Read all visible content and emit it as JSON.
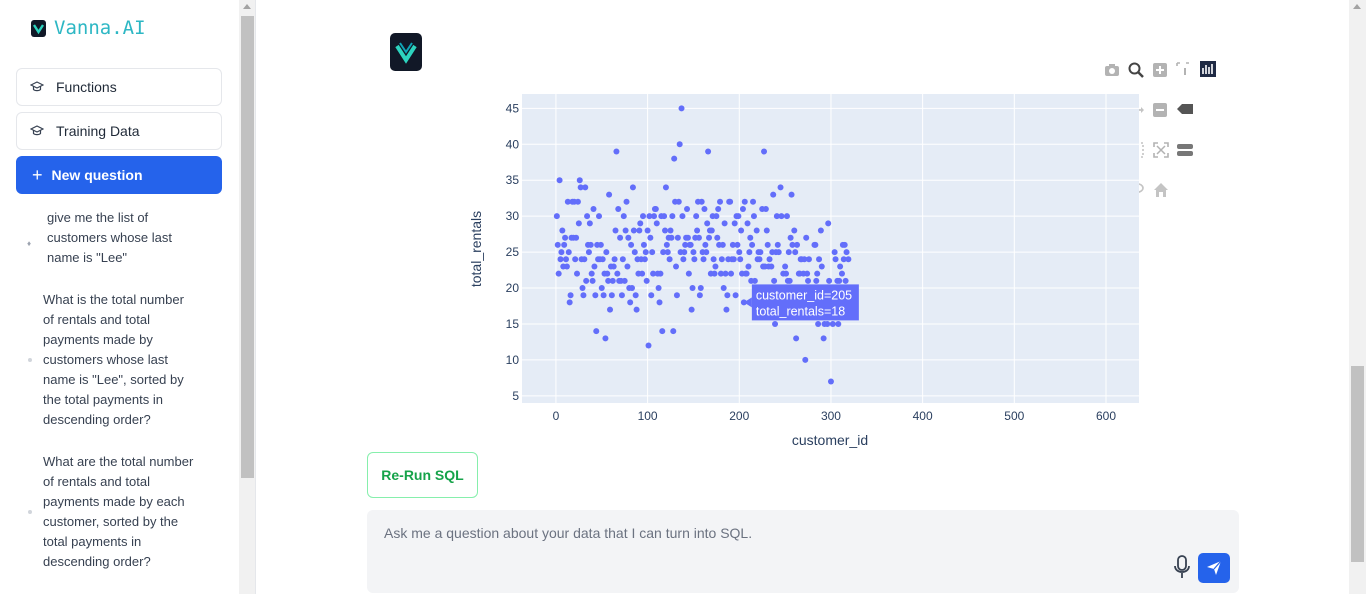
{
  "app": {
    "name": "Vanna.AI"
  },
  "sidebar": {
    "functions_label": "Functions",
    "training_label": "Training Data",
    "new_question_label": "New question",
    "history": [
      {
        "lines": [
          "give me the list of",
          "customers whose last",
          "name is \"Lee\""
        ]
      },
      {
        "lines": [
          "What is the total number",
          "of rentals and total",
          "payments made by",
          "customers whose last",
          "name is \"Lee\", sorted by",
          "the total payments in",
          "descending order?"
        ]
      },
      {
        "lines": [
          "What are the total number",
          "of rentals and total",
          "payments made by each",
          "customer, sorted by the",
          "total payments in",
          "descending order?"
        ]
      }
    ]
  },
  "main": {
    "rerun_label": "Re-Run SQL",
    "input": {
      "placeholder": "Ask me a question about your data that I can turn into SQL.",
      "value": ""
    }
  },
  "chart_data": {
    "type": "scatter",
    "xlabel": "customer_id",
    "ylabel": "total_rentals",
    "xlim": [
      -37,
      636
    ],
    "ylim": [
      4,
      47
    ],
    "xticks": [
      0,
      100,
      200,
      300,
      400,
      500,
      600
    ],
    "yticks": [
      5,
      10,
      15,
      20,
      25,
      30,
      35,
      40,
      45
    ],
    "grid": true,
    "marker_color": "#636efa",
    "plot_bg": "#e5ecf6",
    "hover": {
      "x": 205,
      "y": 18,
      "line1": "customer_id=205",
      "line2": "total_rentals=18"
    },
    "points": [
      [
        1,
        30
      ],
      [
        2,
        26
      ],
      [
        3,
        22
      ],
      [
        4,
        35
      ],
      [
        5,
        24
      ],
      [
        6,
        25
      ],
      [
        7,
        28
      ],
      [
        8,
        23
      ],
      [
        9,
        26
      ],
      [
        10,
        27
      ],
      [
        11,
        24
      ],
      [
        12,
        23
      ],
      [
        13,
        32
      ],
      [
        14,
        25
      ],
      [
        15,
        18
      ],
      [
        16,
        19
      ],
      [
        17,
        27
      ],
      [
        18,
        32
      ],
      [
        19,
        27
      ],
      [
        20,
        32
      ],
      [
        21,
        24
      ],
      [
        22,
        27
      ],
      [
        23,
        22
      ],
      [
        24,
        32
      ],
      [
        25,
        29
      ],
      [
        26,
        35
      ],
      [
        27,
        34
      ],
      [
        28,
        24
      ],
      [
        29,
        20
      ],
      [
        30,
        19
      ],
      [
        31,
        24
      ],
      [
        32,
        34
      ],
      [
        33,
        21
      ],
      [
        34,
        30
      ],
      [
        35,
        26
      ],
      [
        36,
        25
      ],
      [
        37,
        29
      ],
      [
        38,
        26
      ],
      [
        39,
        22
      ],
      [
        40,
        21
      ],
      [
        41,
        31
      ],
      [
        42,
        23
      ],
      [
        43,
        19
      ],
      [
        44,
        14
      ],
      [
        45,
        26
      ],
      [
        46,
        24
      ],
      [
        47,
        30
      ],
      [
        48,
        24
      ],
      [
        49,
        26
      ],
      [
        50,
        20
      ],
      [
        51,
        24
      ],
      [
        52,
        19
      ],
      [
        53,
        22
      ],
      [
        54,
        13
      ],
      [
        55,
        25
      ],
      [
        56,
        22
      ],
      [
        57,
        21
      ],
      [
        58,
        33
      ],
      [
        59,
        17
      ],
      [
        60,
        23
      ],
      [
        61,
        19
      ],
      [
        62,
        21
      ],
      [
        63,
        23
      ],
      [
        64,
        24
      ],
      [
        65,
        28
      ],
      [
        66,
        39
      ],
      [
        67,
        22
      ],
      [
        68,
        31
      ],
      [
        69,
        21
      ],
      [
        70,
        27
      ],
      [
        71,
        21
      ],
      [
        72,
        19
      ],
      [
        73,
        24
      ],
      [
        74,
        30
      ],
      [
        75,
        21
      ],
      [
        76,
        28
      ],
      [
        77,
        32
      ],
      [
        78,
        23
      ],
      [
        79,
        27
      ],
      [
        80,
        20
      ],
      [
        81,
        18
      ],
      [
        82,
        26
      ],
      [
        83,
        20
      ],
      [
        84,
        34
      ],
      [
        85,
        28
      ],
      [
        86,
        25
      ],
      [
        87,
        19
      ],
      [
        88,
        17
      ],
      [
        89,
        24
      ],
      [
        90,
        22
      ],
      [
        91,
        28
      ],
      [
        92,
        29
      ],
      [
        93,
        24
      ],
      [
        94,
        22
      ],
      [
        95,
        30
      ],
      [
        96,
        26
      ],
      [
        97,
        24
      ],
      [
        98,
        25
      ],
      [
        99,
        21
      ],
      [
        100,
        28
      ],
      [
        101,
        12
      ],
      [
        102,
        30
      ],
      [
        103,
        27
      ],
      [
        104,
        19
      ],
      [
        105,
        25
      ],
      [
        106,
        22
      ],
      [
        107,
        30
      ],
      [
        108,
        31
      ],
      [
        109,
        31
      ],
      [
        110,
        29
      ],
      [
        111,
        22
      ],
      [
        112,
        20
      ],
      [
        113,
        18
      ],
      [
        114,
        22
      ],
      [
        115,
        30
      ],
      [
        116,
        14
      ],
      [
        117,
        25
      ],
      [
        118,
        30
      ],
      [
        119,
        28
      ],
      [
        120,
        34
      ],
      [
        121,
        26
      ],
      [
        122,
        25
      ],
      [
        123,
        27
      ],
      [
        124,
        24
      ],
      [
        125,
        28
      ],
      [
        126,
        27
      ],
      [
        127,
        30
      ],
      [
        128,
        14
      ],
      [
        129,
        38
      ],
      [
        130,
        32
      ],
      [
        131,
        23
      ],
      [
        132,
        19
      ],
      [
        133,
        27
      ],
      [
        134,
        32
      ],
      [
        135,
        40
      ],
      [
        136,
        25
      ],
      [
        137,
        45
      ],
      [
        138,
        30
      ],
      [
        139,
        24
      ],
      [
        140,
        25
      ],
      [
        141,
        26
      ],
      [
        142,
        27
      ],
      [
        143,
        31
      ],
      [
        144,
        27
      ],
      [
        145,
        22
      ],
      [
        146,
        26
      ],
      [
        147,
        26
      ],
      [
        148,
        17
      ],
      [
        149,
        20
      ],
      [
        150,
        25
      ],
      [
        151,
        24
      ],
      [
        152,
        27
      ],
      [
        153,
        30
      ],
      [
        154,
        28
      ],
      [
        155,
        32
      ],
      [
        156,
        27
      ],
      [
        157,
        19
      ],
      [
        158,
        20
      ],
      [
        159,
        32
      ],
      [
        160,
        25
      ],
      [
        161,
        24
      ],
      [
        162,
        31
      ],
      [
        163,
        26
      ],
      [
        164,
        25
      ],
      [
        165,
        29
      ],
      [
        166,
        39
      ],
      [
        167,
        27
      ],
      [
        168,
        28
      ],
      [
        169,
        22
      ],
      [
        170,
        28
      ],
      [
        171,
        30
      ],
      [
        172,
        24
      ],
      [
        173,
        22
      ],
      [
        174,
        23
      ],
      [
        175,
        30
      ],
      [
        176,
        27
      ],
      [
        177,
        31
      ],
      [
        178,
        26
      ],
      [
        179,
        32
      ],
      [
        180,
        22
      ],
      [
        181,
        24
      ],
      [
        182,
        26
      ],
      [
        183,
        20
      ],
      [
        184,
        29
      ],
      [
        185,
        22
      ],
      [
        186,
        17
      ],
      [
        187,
        19
      ],
      [
        188,
        24
      ],
      [
        189,
        32
      ],
      [
        190,
        32
      ],
      [
        191,
        22
      ],
      [
        192,
        24
      ],
      [
        193,
        26
      ],
      [
        194,
        24
      ],
      [
        195,
        29
      ],
      [
        196,
        19
      ],
      [
        197,
        30
      ],
      [
        198,
        26
      ],
      [
        199,
        30
      ],
      [
        200,
        25
      ],
      [
        201,
        24
      ],
      [
        202,
        28
      ],
      [
        203,
        22
      ],
      [
        204,
        31
      ],
      [
        205,
        18
      ],
      [
        206,
        32
      ],
      [
        207,
        22
      ],
      [
        208,
        22
      ],
      [
        209,
        29
      ],
      [
        210,
        23
      ],
      [
        211,
        25
      ],
      [
        212,
        27
      ],
      [
        213,
        21
      ],
      [
        214,
        26
      ],
      [
        215,
        32
      ],
      [
        216,
        30
      ],
      [
        217,
        21
      ],
      [
        218,
        20
      ],
      [
        219,
        28
      ],
      [
        220,
        24
      ],
      [
        221,
        25
      ],
      [
        222,
        24
      ],
      [
        223,
        25
      ],
      [
        224,
        20
      ],
      [
        225,
        31
      ],
      [
        226,
        23
      ],
      [
        227,
        39
      ],
      [
        228,
        23
      ],
      [
        229,
        31
      ],
      [
        230,
        28
      ],
      [
        231,
        26
      ],
      [
        232,
        23
      ],
      [
        233,
        24
      ],
      [
        234,
        17
      ],
      [
        235,
        23
      ],
      [
        236,
        25
      ],
      [
        237,
        33
      ],
      [
        238,
        21
      ],
      [
        239,
        15
      ],
      [
        240,
        25
      ],
      [
        241,
        30
      ],
      [
        242,
        26
      ],
      [
        243,
        25
      ],
      [
        244,
        17
      ],
      [
        245,
        34
      ],
      [
        246,
        30
      ],
      [
        247,
        19
      ],
      [
        248,
        22
      ],
      [
        249,
        20
      ],
      [
        250,
        23
      ],
      [
        251,
        22
      ],
      [
        252,
        30
      ],
      [
        253,
        21
      ],
      [
        254,
        25
      ],
      [
        255,
        21
      ],
      [
        256,
        27
      ],
      [
        257,
        33
      ],
      [
        258,
        26
      ],
      [
        259,
        17
      ],
      [
        260,
        28
      ],
      [
        261,
        25
      ],
      [
        262,
        13
      ],
      [
        263,
        26
      ],
      [
        264,
        17
      ],
      [
        265,
        22
      ],
      [
        266,
        22
      ],
      [
        267,
        24
      ],
      [
        268,
        24
      ],
      [
        269,
        20
      ],
      [
        270,
        22
      ],
      [
        271,
        24
      ],
      [
        272,
        10
      ],
      [
        273,
        27
      ],
      [
        274,
        22
      ],
      [
        275,
        21
      ],
      [
        276,
        24
      ],
      [
        277,
        18
      ],
      [
        278,
        19
      ],
      [
        279,
        18
      ],
      [
        280,
        16
      ],
      [
        281,
        18
      ],
      [
        282,
        26
      ],
      [
        283,
        26
      ],
      [
        284,
        21
      ],
      [
        285,
        22
      ],
      [
        286,
        15
      ],
      [
        287,
        24
      ],
      [
        288,
        16
      ],
      [
        289,
        28
      ],
      [
        290,
        23
      ],
      [
        291,
        20
      ],
      [
        292,
        13
      ],
      [
        293,
        15
      ],
      [
        294,
        18
      ],
      [
        295,
        17
      ],
      [
        296,
        15
      ],
      [
        297,
        29
      ],
      [
        298,
        21
      ],
      [
        299,
        17
      ],
      [
        300,
        7
      ],
      [
        301,
        16
      ],
      [
        302,
        15
      ],
      [
        303,
        16
      ],
      [
        304,
        25
      ],
      [
        305,
        24
      ],
      [
        306,
        20
      ],
      [
        307,
        21
      ],
      [
        308,
        15
      ],
      [
        309,
        21
      ],
      [
        310,
        23
      ],
      [
        311,
        18
      ],
      [
        312,
        22
      ],
      [
        313,
        26
      ],
      [
        314,
        24
      ],
      [
        315,
        26
      ],
      [
        316,
        21
      ],
      [
        317,
        25
      ],
      [
        318,
        16
      ],
      [
        319,
        24
      ],
      [
        320,
        18
      ]
    ]
  }
}
